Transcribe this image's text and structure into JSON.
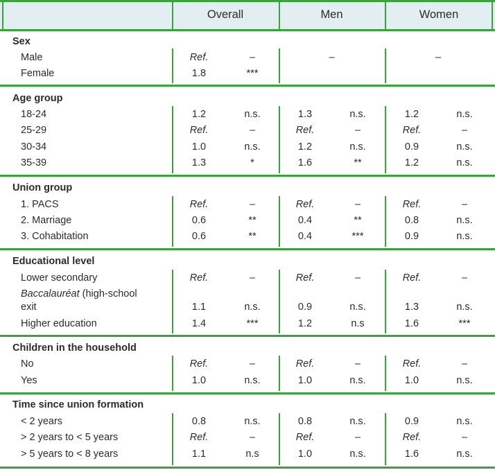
{
  "columns": [
    "Overall",
    "Men",
    "Women"
  ],
  "sections": [
    {
      "title": "Sex",
      "rows": [
        {
          "label": "Male",
          "overall": [
            "Ref.",
            "–"
          ],
          "men": [
            "",
            "–"
          ],
          "women": [
            "",
            "–"
          ]
        },
        {
          "label": "Female",
          "overall": [
            "1.8",
            "***"
          ],
          "men": [
            "",
            ""
          ],
          "women": [
            "",
            ""
          ]
        }
      ]
    },
    {
      "title": "Age group",
      "rows": [
        {
          "label": "18-24",
          "overall": [
            "1.2",
            "n.s."
          ],
          "men": [
            "1.3",
            "n.s."
          ],
          "women": [
            "1.2",
            "n.s."
          ]
        },
        {
          "label": "25-29",
          "overall": [
            "Ref.",
            "–"
          ],
          "men": [
            "Ref.",
            "–"
          ],
          "women": [
            "Ref.",
            "–"
          ]
        },
        {
          "label": "30-34",
          "overall": [
            "1.0",
            "n.s."
          ],
          "men": [
            "1.2",
            "n.s."
          ],
          "women": [
            "0.9",
            "n.s."
          ]
        },
        {
          "label": "35-39",
          "overall": [
            "1.3",
            "*"
          ],
          "men": [
            "1.6",
            "**"
          ],
          "women": [
            "1.2",
            "n.s."
          ]
        }
      ]
    },
    {
      "title": "Union group",
      "rows": [
        {
          "label": "1. PACS",
          "overall": [
            "Ref.",
            "–"
          ],
          "men": [
            "Ref.",
            "–"
          ],
          "women": [
            "Ref.",
            "–"
          ]
        },
        {
          "label": "2. Marriage",
          "overall": [
            "0.6",
            "**"
          ],
          "men": [
            "0.4",
            "**"
          ],
          "women": [
            "0.8",
            "n.s."
          ]
        },
        {
          "label": "3. Cohabitation",
          "overall": [
            "0.6",
            "**"
          ],
          "men": [
            "0.4",
            "***"
          ],
          "women": [
            "0.9",
            "n.s."
          ]
        }
      ]
    },
    {
      "title": "Educational level",
      "rows": [
        {
          "label": "Lower secondary",
          "overall": [
            "Ref.",
            "–"
          ],
          "men": [
            "Ref.",
            "–"
          ],
          "women": [
            "Ref.",
            "–"
          ]
        },
        {
          "label_italic": "Baccalauréat",
          "label_line1_rest": " (high-school",
          "label_line2": "exit",
          "overall": [
            "1.1",
            "n.s."
          ],
          "men": [
            "0.9",
            "n.s."
          ],
          "women": [
            "1.3",
            "n.s."
          ]
        },
        {
          "label": "Higher education",
          "overall": [
            "1.4",
            "***"
          ],
          "men": [
            "1.2",
            "n.s"
          ],
          "women": [
            "1.6",
            "***"
          ]
        }
      ]
    },
    {
      "title": "Children in the household",
      "rows": [
        {
          "label": "No",
          "overall": [
            "Ref.",
            "–"
          ],
          "men": [
            "Ref.",
            "–"
          ],
          "women": [
            "Ref.",
            "–"
          ]
        },
        {
          "label": "Yes",
          "overall": [
            "1.0",
            "n.s."
          ],
          "men": [
            "1.0",
            "n.s."
          ],
          "women": [
            "1.0",
            "n.s."
          ]
        }
      ]
    },
    {
      "title": "Time since union formation",
      "rows": [
        {
          "label": "< 2 years",
          "overall": [
            "0.8",
            "n.s."
          ],
          "men": [
            "0.8",
            "n.s."
          ],
          "women": [
            "0.9",
            "n.s."
          ]
        },
        {
          "label": "> 2 years to < 5 years",
          "overall": [
            "Ref.",
            "–"
          ],
          "men": [
            "Ref.",
            "–"
          ],
          "women": [
            "Ref.",
            "–"
          ]
        },
        {
          "label": "> 5 years to < 8 years",
          "overall": [
            "1.1",
            "n.s"
          ],
          "men": [
            "1.0",
            "n.s."
          ],
          "women": [
            "1.6",
            "n.s."
          ]
        }
      ]
    }
  ],
  "colors": {
    "rule": "#39a23d",
    "header_band": "#e3eef3",
    "text": "#2b2b2b"
  }
}
